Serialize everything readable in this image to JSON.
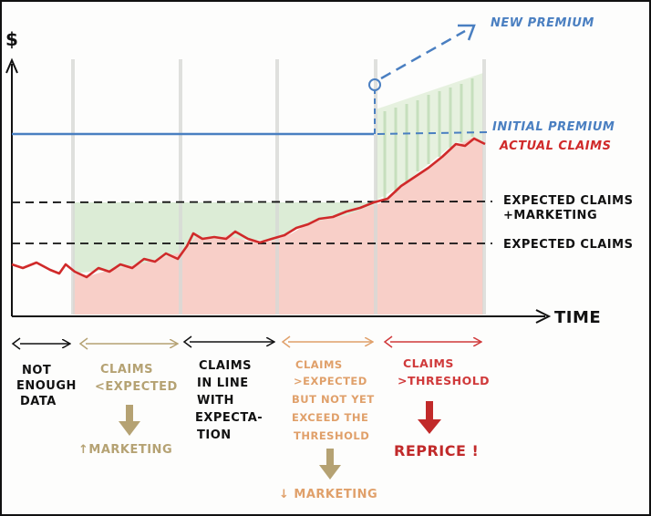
{
  "axes": {
    "y_label": "$",
    "x_label": "TIME"
  },
  "chart_data": {
    "type": "line",
    "title": "",
    "xlabel": "TIME",
    "ylabel": "$",
    "series": [
      {
        "name": "NEW PREMIUM"
      },
      {
        "name": "INITIAL PREMIUM"
      },
      {
        "name": "ACTUAL CLAIMS"
      },
      {
        "name": "EXPECTED CLAIMS + MARKETING"
      },
      {
        "name": "EXPECTED CLAIMS"
      }
    ]
  },
  "line_labels": {
    "new_premium": "NEW PREMIUM",
    "initial_premium": "INITIAL PREMIUM",
    "actual_claims": "ACTUAL CLAIMS",
    "expected_claims_marketing_1": "EXPECTED CLAIMS",
    "expected_claims_marketing_2": "+MARKETING",
    "expected_claims": "EXPECTED CLAIMS"
  },
  "phases": [
    {
      "lines": [
        "NOT",
        "ENOUGH",
        "DATA"
      ],
      "color": "#111111"
    },
    {
      "lines": [
        "CLAIMS",
        "<EXPECTED"
      ],
      "action": "↑MARKETING",
      "color": "#b5a273"
    },
    {
      "lines": [
        "CLAIMS",
        "IN LINE",
        "WITH",
        "EXPECTA-",
        "TION"
      ],
      "color": "#111111"
    },
    {
      "lines": [
        "CLAIMS",
        ">EXPECTED",
        "BUT NOT YET",
        "EXCEED THE",
        "THRESHOLD"
      ],
      "action": "↓ MARKETING",
      "color": "#e0a06a"
    },
    {
      "lines": [
        "CLAIMS",
        ">THRESHOLD"
      ],
      "action": "REPRICE !",
      "color": "#d0393a"
    }
  ],
  "colors": {
    "premium_blue": "#4a7fc1",
    "claims_red": "#d02a2a",
    "loss_fill": "#f8cfc8",
    "profit_fill": "#d8ead2",
    "phase_tan": "#b5a273",
    "phase_orange": "#e0a06a"
  }
}
